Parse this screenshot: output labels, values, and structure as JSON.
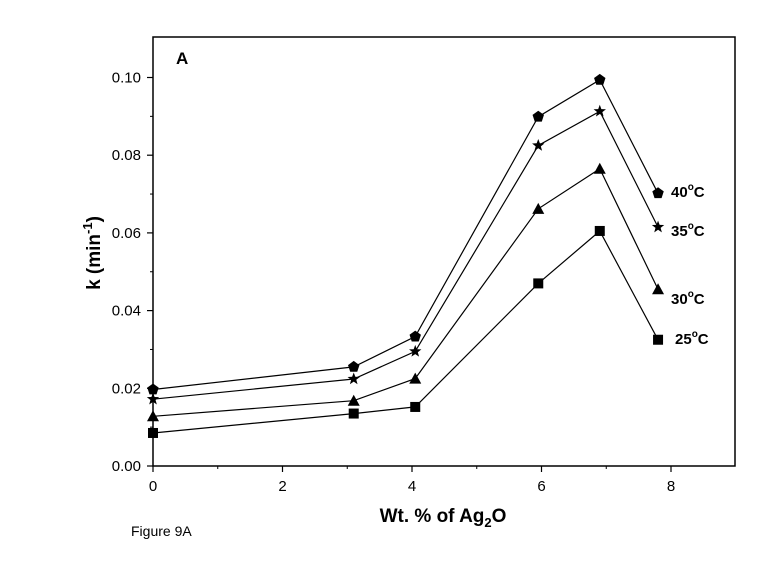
{
  "caption": "Figure 9A",
  "chart_data": {
    "type": "line",
    "panel_label": "A",
    "xlabel": {
      "main": "Wt. % of Ag",
      "sub": "2",
      "tail": "O"
    },
    "ylabel": {
      "main": "k (min",
      "sup": "-1",
      "tail": ")"
    },
    "xlim": [
      0,
      9
    ],
    "ylim": [
      0,
      0.11
    ],
    "x_ticks": [
      0,
      2,
      4,
      6,
      8
    ],
    "x_tick_labels": [
      "0",
      "2",
      "4",
      "6",
      "8"
    ],
    "y_ticks": [
      0,
      0.02,
      0.04,
      0.06,
      0.08,
      0.1
    ],
    "y_tick_labels": [
      "0.00",
      "0.02",
      "0.04",
      "0.06",
      "0.08",
      "0.10"
    ],
    "grid": false,
    "series": [
      {
        "name": "25°C",
        "label_text": "25",
        "marker": "square",
        "x": [
          0,
          3.1,
          4.05,
          5.95,
          6.9,
          7.8
        ],
        "y": [
          0.0085,
          0.0135,
          0.0152,
          0.047,
          0.0605,
          0.0325
        ]
      },
      {
        "name": "30°C",
        "label_text": "30",
        "marker": "triangle",
        "x": [
          0,
          3.1,
          4.05,
          5.95,
          6.9,
          7.8
        ],
        "y": [
          0.0128,
          0.0168,
          0.0225,
          0.0662,
          0.0765,
          0.0455
        ]
      },
      {
        "name": "35°C",
        "label_text": "35",
        "marker": "star",
        "x": [
          0,
          3.1,
          4.05,
          5.95,
          6.9,
          7.8
        ],
        "y": [
          0.0172,
          0.0224,
          0.0295,
          0.0825,
          0.0913,
          0.0615
        ]
      },
      {
        "name": "40°C",
        "label_text": "40",
        "marker": "pentagon",
        "x": [
          0,
          3.1,
          4.05,
          5.95,
          6.9,
          7.8
        ],
        "y": [
          0.0197,
          0.0255,
          0.0333,
          0.0899,
          0.0994,
          0.0702
        ]
      }
    ],
    "degree_unit": {
      "sup": "o",
      "unit": "C"
    }
  }
}
